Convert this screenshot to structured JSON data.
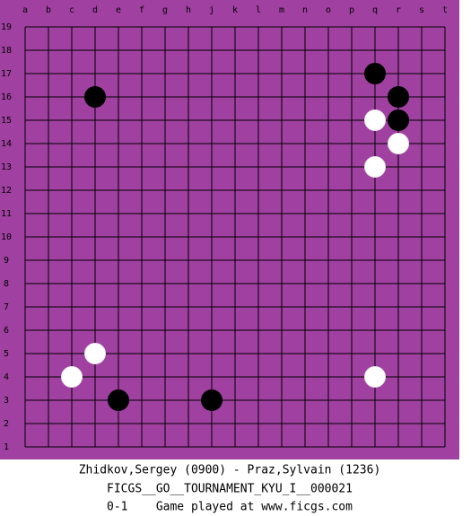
{
  "board": {
    "columns": [
      "a",
      "b",
      "c",
      "d",
      "e",
      "f",
      "g",
      "h",
      "j",
      "k",
      "l",
      "m",
      "n",
      "o",
      "p",
      "q",
      "r",
      "s",
      "t"
    ],
    "rows": [
      19,
      18,
      17,
      16,
      15,
      14,
      13,
      12,
      11,
      10,
      9,
      8,
      7,
      6,
      5,
      4,
      3,
      2,
      1
    ],
    "stones": [
      {
        "color": "black",
        "point": "q17"
      },
      {
        "color": "black",
        "point": "r16"
      },
      {
        "color": "black",
        "point": "r15"
      },
      {
        "color": "black",
        "point": "d16"
      },
      {
        "color": "black",
        "point": "e3"
      },
      {
        "color": "black",
        "point": "j3"
      },
      {
        "color": "white",
        "point": "q15"
      },
      {
        "color": "white",
        "point": "r14"
      },
      {
        "color": "white",
        "point": "q13"
      },
      {
        "color": "white",
        "point": "d5"
      },
      {
        "color": "white",
        "point": "c4"
      },
      {
        "color": "white",
        "point": "q4"
      }
    ]
  },
  "footer": {
    "players": "Zhidkov,Sergey (0900) - Praz,Sylvain (1236)",
    "event": "FICGS__GO__TOURNAMENT_KYU_I__000021",
    "result": "0-1    Game played at www.ficgs.com"
  }
}
